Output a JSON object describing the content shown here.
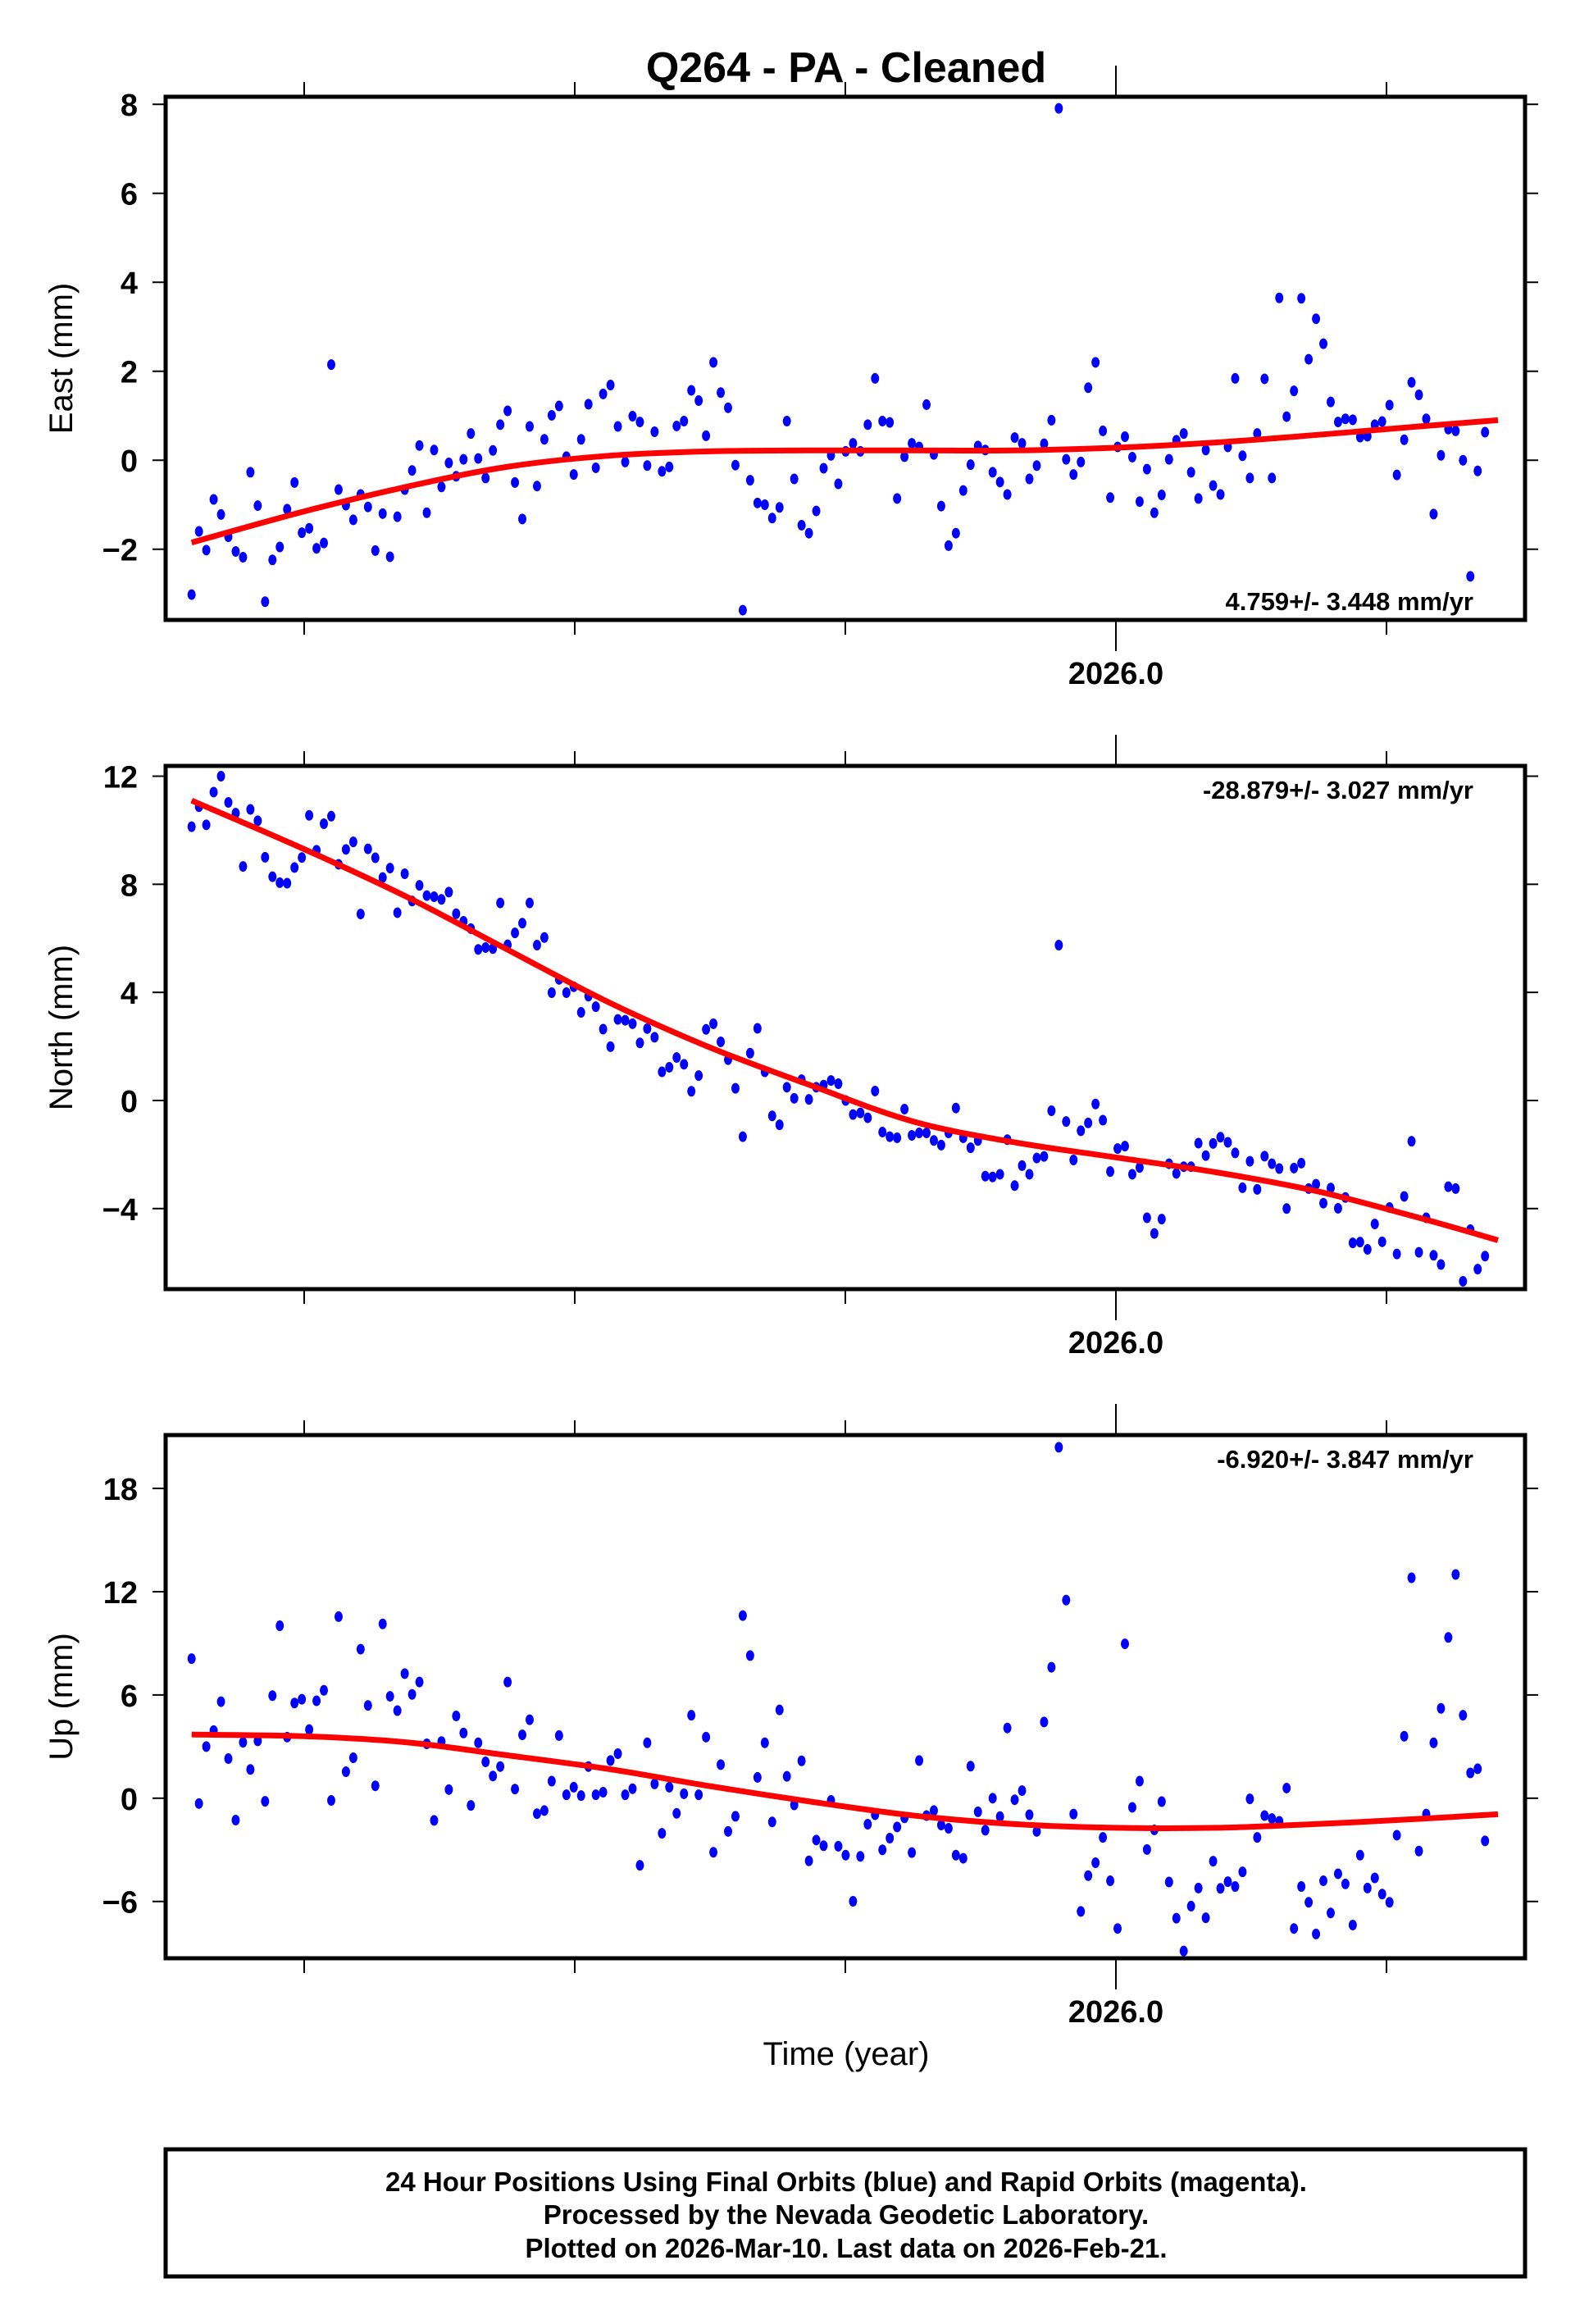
{
  "title": "Q264  - PA - Cleaned",
  "xlabel": "Time (year)",
  "x_tick_label": "2026.0",
  "footer": {
    "line1": "24 Hour Positions Using Final Orbits (blue) and Rapid Orbits (magenta).",
    "line2": "Processed by the Nevada Geodetic Laboratory.",
    "line3": "Plotted on 2026-Mar-10. Last data on 2026-Feb-21."
  },
  "colors": {
    "points": "#0000ff",
    "fit": "#ff0000",
    "axes": "#000000"
  },
  "chart_data": [
    {
      "type": "scatter",
      "name": "east",
      "ylabel": "East (mm)",
      "rate": "4.759+/- 3.448 mm/yr",
      "xlim": [
        2025.122,
        2026.378
      ],
      "ylim": [
        -3.59,
        8.17
      ],
      "x_ticks": [
        2025.25,
        2025.5,
        2025.75,
        2026.0,
        2026.25
      ],
      "x_tick_labels": {
        "2026.0": "2026.0"
      },
      "y_ticks": [
        -2,
        0,
        2,
        4,
        6,
        8
      ],
      "y_tick_labels": [
        "−2",
        "0",
        "2",
        "4",
        "6",
        "8"
      ],
      "x_start": 2025.146,
      "x_step": 0.00679,
      "y": [
        -3.02,
        -1.6,
        -2.02,
        -0.88,
        -1.22,
        -1.72,
        -2.05,
        -2.18,
        -0.27,
        -1.02,
        -3.18,
        -2.24,
        -1.95,
        -1.1,
        -0.5,
        -1.63,
        -1.53,
        -1.98,
        -1.86,
        2.15,
        -0.66,
        -1.01,
        -1.34,
        -0.77,
        -1.05,
        -2.03,
        -1.2,
        -2.17,
        -1.27,
        -0.66,
        -0.23,
        0.33,
        -1.18,
        0.23,
        -0.6,
        -0.06,
        -0.36,
        0.02,
        0.6,
        0.04,
        -0.4,
        0.22,
        0.8,
        1.11,
        -0.5,
        -1.32,
        0.76,
        -0.58,
        0.47,
        1.01,
        1.22,
        0.08,
        -0.32,
        0.47,
        1.26,
        -0.17,
        1.49,
        1.69,
        0.76,
        -0.04,
        0.99,
        0.86,
        -0.12,
        0.64,
        -0.25,
        -0.15,
        0.77,
        0.88,
        1.57,
        1.34,
        0.55,
        2.2,
        1.52,
        1.18,
        -0.11,
        -3.37,
        -0.45,
        -0.96,
        -1.0,
        -1.3,
        -1.06,
        0.88,
        -0.42,
        -1.46,
        -1.64,
        -1.14,
        -0.18,
        0.11,
        -0.53,
        0.2,
        0.38,
        0.2,
        0.8,
        1.84,
        0.88,
        0.85,
        -0.86,
        0.08,
        0.38,
        0.3,
        1.25,
        0.13,
        -1.03,
        -1.92,
        -1.64,
        -0.68,
        -0.1,
        0.32,
        0.23,
        -0.27,
        -0.49,
        -0.77,
        0.51,
        0.38,
        -0.42,
        -0.12,
        0.37,
        0.9,
        7.91,
        0.02,
        -0.32,
        -0.04,
        1.63,
        2.2,
        0.66,
        -0.84,
        0.3,
        0.53,
        0.07,
        -0.93,
        -0.2,
        -1.18,
        -0.78,
        0.02,
        0.45,
        0.6,
        -0.27,
        -0.86,
        0.23,
        -0.57,
        -0.77,
        0.3,
        1.84,
        0.1,
        -0.4,
        0.6,
        1.83,
        -0.4,
        3.65,
        0.98,
        1.56,
        3.64,
        2.27,
        3.18,
        2.62,
        1.31,
        0.86,
        0.93,
        0.91,
        0.52,
        0.54,
        0.8,
        0.87,
        1.24,
        -0.33,
        0.46,
        1.75,
        1.47,
        0.93,
        -1.21,
        0.11,
        0.7,
        0.66,
        0,
        -2.61,
        -0.24,
        0.63
      ],
      "fit": [
        [
          2025.146,
          -1.85
        ],
        [
          2025.25,
          -1.15
        ],
        [
          2025.344,
          -0.6
        ],
        [
          2025.437,
          -0.15
        ],
        [
          2025.531,
          0.1
        ],
        [
          2025.625,
          0.2
        ],
        [
          2025.718,
          0.22
        ],
        [
          2025.812,
          0.22
        ],
        [
          2025.905,
          0.22
        ],
        [
          2025.999,
          0.28
        ],
        [
          2026.093,
          0.4
        ],
        [
          2026.186,
          0.57
        ],
        [
          2026.28,
          0.76
        ],
        [
          2026.353,
          0.9
        ]
      ]
    },
    {
      "type": "scatter",
      "name": "north",
      "ylabel": "North (mm)",
      "rate": "-28.879+/- 3.027 mm/yr",
      "xlim": [
        2025.122,
        2026.378
      ],
      "ylim": [
        -6.98,
        12.38
      ],
      "x_ticks": [
        2025.25,
        2025.5,
        2025.75,
        2026.0,
        2026.25
      ],
      "y_ticks": [
        -4,
        0,
        4,
        8,
        12
      ],
      "y_tick_labels": [
        "−4",
        "0",
        "4",
        "8",
        "12"
      ],
      "x_start": 2025.146,
      "x_step": 0.00679,
      "y": [
        10.13,
        10.87,
        10.2,
        11.41,
        12.0,
        11.03,
        10.63,
        8.66,
        10.77,
        10.35,
        9.0,
        8.28,
        8.06,
        8.04,
        8.62,
        8.99,
        10.55,
        9.26,
        10.24,
        10.52,
        8.74,
        9.29,
        9.57,
        6.9,
        9.31,
        8.98,
        8.25,
        8.6,
        6.95,
        8.39,
        7.38,
        7.96,
        7.58,
        7.54,
        7.44,
        7.71,
        6.91,
        6.63,
        6.36,
        5.59,
        5.66,
        5.62,
        7.31,
        5.76,
        6.2,
        6.56,
        7.31,
        5.75,
        6.03,
        3.99,
        4.48,
        3.99,
        4.21,
        3.26,
        3.86,
        3.47,
        2.64,
        1.99,
        3.0,
        2.97,
        2.84,
        2.13,
        2.66,
        2.34,
        1.06,
        1.23,
        1.59,
        1.34,
        0.34,
        0.92,
        2.63,
        2.84,
        2.17,
        1.51,
        0.45,
        -1.34,
        1.75,
        2.67,
        1.06,
        -0.57,
        -0.9,
        0.49,
        0.08,
        0.77,
        0.04,
        0.49,
        0.57,
        0.74,
        0.62,
        0,
        -0.52,
        -0.46,
        -0.64,
        0.35,
        -1.17,
        -1.34,
        -1.38,
        -0.32,
        -1.29,
        -1.2,
        -1.2,
        -1.48,
        -1.65,
        -1.2,
        -0.28,
        -1.38,
        -1.75,
        -1.48,
        -2.8,
        -2.83,
        -2.73,
        -1.45,
        -3.15,
        -2.41,
        -2.73,
        -2.13,
        -2.07,
        -0.38,
        5.75,
        -0.78,
        -2.2,
        -1.12,
        -0.83,
        -0.13,
        -0.73,
        -2.63,
        -1.78,
        -1.69,
        -2.73,
        -2.48,
        -4.34,
        -4.92,
        -4.39,
        -2.34,
        -2.7,
        -2.45,
        -2.45,
        -1.58,
        -2.04,
        -1.59,
        -1.36,
        -1.55,
        -1.94,
        -3.23,
        -2.25,
        -3.29,
        -2.06,
        -2.34,
        -2.52,
        -4.0,
        -2.5,
        -2.32,
        -3.26,
        -3.1,
        -3.8,
        -3.24,
        -3.99,
        -3.59,
        -5.27,
        -5.24,
        -5.51,
        -4.57,
        -5.23,
        -3.96,
        -5.68,
        -3.55,
        -1.51,
        -5.62,
        -4.34,
        -5.73,
        -6.07,
        -3.19,
        -3.26,
        -6.69,
        -4.78,
        -6.24,
        -5.76
      ],
      "fit": [
        [
          2025.146,
          11.1
        ],
        [
          2025.25,
          9.3
        ],
        [
          2025.344,
          7.55
        ],
        [
          2025.437,
          5.6
        ],
        [
          2025.531,
          3.64
        ],
        [
          2025.625,
          1.96
        ],
        [
          2025.718,
          0.56
        ],
        [
          2025.812,
          -0.77
        ],
        [
          2025.905,
          -1.54
        ],
        [
          2025.999,
          -2.1
        ],
        [
          2026.093,
          -2.66
        ],
        [
          2026.186,
          -3.36
        ],
        [
          2026.28,
          -4.34
        ],
        [
          2026.353,
          -5.17
        ]
      ]
    },
    {
      "type": "scatter",
      "name": "up",
      "ylabel": "Up (mm)",
      "rate": "-6.920+/- 3.847 mm/yr",
      "xlim": [
        2025.122,
        2026.378
      ],
      "ylim": [
        -9.3,
        21.1
      ],
      "x_ticks": [
        2025.25,
        2025.5,
        2025.75,
        2026.0,
        2026.25
      ],
      "y_ticks": [
        -6,
        0,
        6,
        12,
        18
      ],
      "y_tick_labels": [
        "−6",
        "0",
        "6",
        "12",
        "18"
      ],
      "x_start": 2025.146,
      "x_step": 0.00679,
      "y": [
        8.11,
        -0.31,
        3.0,
        3.93,
        5.61,
        2.3,
        -1.27,
        3.25,
        1.67,
        3.33,
        -0.18,
        5.96,
        10.02,
        3.55,
        5.53,
        5.75,
        3.99,
        5.66,
        6.27,
        -0.13,
        10.55,
        1.54,
        2.35,
        8.66,
        5.39,
        0.72,
        10.13,
        5.92,
        5.09,
        7.24,
        6.03,
        6.75,
        3.16,
        -1.29,
        3.29,
        0.5,
        4.78,
        3.79,
        -0.42,
        3.22,
        2.11,
        1.29,
        1.84,
        6.75,
        0.53,
        3.68,
        4.56,
        -0.9,
        -0.72,
        0.99,
        3.64,
        0.2,
        0.64,
        0.15,
        1.84,
        0.2,
        0.35,
        2.19,
        2.59,
        0.2,
        0.55,
        -3.9,
        3.22,
        0.83,
        -2.04,
        0.64,
        -0.88,
        0.26,
        4.82,
        0.2,
        3.55,
        -3.14,
        1.95,
        -1.93,
        -1.05,
        10.61,
        8.29,
        1.21,
        3.22,
        -1.38,
        5.13,
        1.27,
        -0.39,
        2.17,
        -3.64,
        -2.43,
        -2.76,
        -0.13,
        -2.79,
        -3.31,
        -5.99,
        -3.38,
        -1.51,
        -0.96,
        -3.0,
        -2.32,
        -1.67,
        -1.14,
        -3.16,
        2.19,
        -1.01,
        -0.72,
        -1.56,
        -1.75,
        -3.31,
        -3.49,
        1.86,
        -0.79,
        -1.86,
        0,
        -1.07,
        4.08,
        -0.09,
        0.44,
        -0.96,
        -1.93,
        4.43,
        7.61,
        20.39,
        11.51,
        -0.92,
        -6.58,
        -4.5,
        -3.75,
        -2.28,
        -4.8,
        -7.57,
        8.97,
        -0.53,
        0.99,
        -2.98,
        -1.84,
        -0.2,
        -4.87,
        -6.97,
        -8.88,
        -6.27,
        -5.22,
        -6.95,
        -3.66,
        -5.24,
        -4.85,
        -5.13,
        -4.28,
        -0.04,
        -2.28,
        -1.01,
        -1.18,
        -1.34,
        0.59,
        -7.57,
        -5.13,
        -6.05,
        -7.89,
        -4.8,
        -6.67,
        -4.39,
        -4.98,
        -7.37,
        -3.31,
        -5.22,
        -4.63,
        -5.57,
        -6.05,
        -2.15,
        3.6,
        12.81,
        -3.07,
        -0.92,
        3.22,
        5.22,
        9.34,
        13.0,
        4.82,
        1.47,
        1.71,
        -2.48
      ],
      "fit": [
        [
          2025.146,
          3.7
        ],
        [
          2025.25,
          3.6
        ],
        [
          2025.344,
          3.25
        ],
        [
          2025.437,
          2.5
        ],
        [
          2025.531,
          1.7
        ],
        [
          2025.625,
          0.7
        ],
        [
          2025.718,
          -0.2
        ],
        [
          2025.812,
          -1.0
        ],
        [
          2025.905,
          -1.5
        ],
        [
          2025.999,
          -1.72
        ],
        [
          2026.093,
          -1.72
        ],
        [
          2026.186,
          -1.5
        ],
        [
          2026.28,
          -1.2
        ],
        [
          2026.353,
          -0.93
        ]
      ]
    }
  ]
}
